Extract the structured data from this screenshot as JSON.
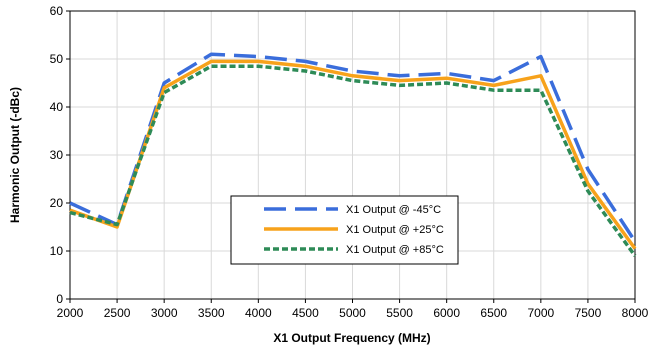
{
  "chart_data": {
    "type": "line",
    "xlabel": "X1 Output Frequency (MHz)",
    "ylabel": "Harmonic Output (-dBc)",
    "xlim": [
      2000,
      8000
    ],
    "ylim": [
      0,
      60
    ],
    "xticks": [
      2000,
      2500,
      3000,
      3500,
      4000,
      4500,
      5000,
      5500,
      6000,
      6500,
      7000,
      7500,
      8000
    ],
    "yticks": [
      0,
      10,
      20,
      30,
      40,
      50,
      60
    ],
    "grid": true,
    "legend_position": "center",
    "series": [
      {
        "name": "X1 Output @ -45°C",
        "color": "#3a6ddb",
        "dash": "long-dash",
        "x": [
          2000,
          2500,
          3000,
          3500,
          4000,
          4500,
          5000,
          5500,
          6000,
          6500,
          7000,
          7500,
          8000
        ],
        "y": [
          20,
          15.5,
          45,
          51,
          50.5,
          49.5,
          47.5,
          46.5,
          47,
          45.5,
          50.5,
          27,
          12
        ]
      },
      {
        "name": "X1 Output @ +25°C",
        "color": "#f7a21b",
        "dash": "solid",
        "x": [
          2000,
          2500,
          3000,
          3500,
          4000,
          4500,
          5000,
          5500,
          6000,
          6500,
          7000,
          7500,
          8000
        ],
        "y": [
          18.5,
          15,
          44,
          49.5,
          49.5,
          48.5,
          46.5,
          45.5,
          46,
          44.5,
          46.5,
          24,
          10.5
        ]
      },
      {
        "name": "X1 Output @ +85°C",
        "color": "#2e8b57",
        "dash": "dotted",
        "x": [
          2000,
          2500,
          3000,
          3500,
          4000,
          4500,
          5000,
          5500,
          6000,
          6500,
          7000,
          7500,
          8000
        ],
        "y": [
          18,
          15.5,
          43,
          48.5,
          48.5,
          47.5,
          45.5,
          44.5,
          45,
          43.5,
          43.5,
          22.5,
          9
        ]
      }
    ]
  }
}
